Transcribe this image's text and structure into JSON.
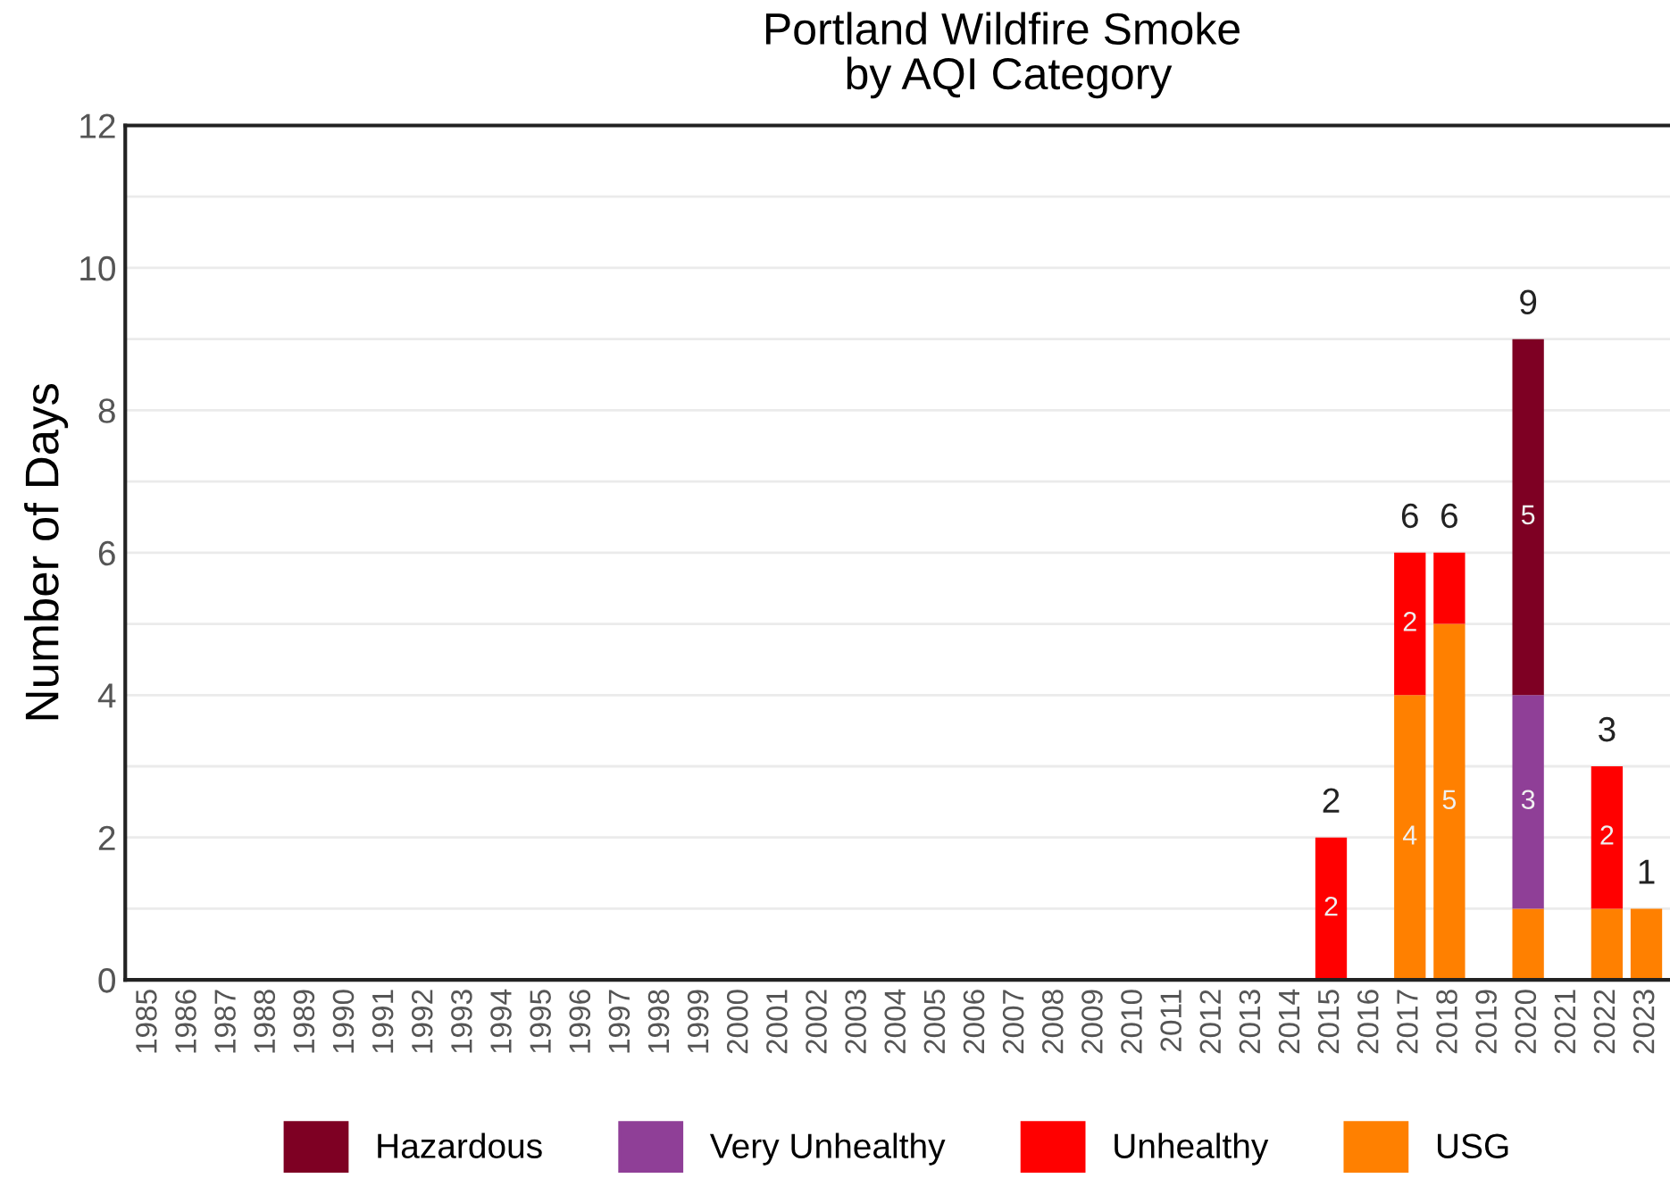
{
  "chart_data": {
    "type": "bar",
    "stacked": true,
    "title": "Portland Wildfire Smoke\n by AQI Category",
    "ylabel": "Number of Days",
    "categories": [
      "1985",
      "1986",
      "1987",
      "1988",
      "1989",
      "1990",
      "1991",
      "1992",
      "1993",
      "1994",
      "1995",
      "1996",
      "1997",
      "1998",
      "1999",
      "2000",
      "2001",
      "2002",
      "2003",
      "2004",
      "2005",
      "2006",
      "2007",
      "2008",
      "2009",
      "2010",
      "2011",
      "2012",
      "2013",
      "2014",
      "2015",
      "2016",
      "2017",
      "2018",
      "2019",
      "2020",
      "2021",
      "2022",
      "2023"
    ],
    "series": [
      {
        "name": "USG",
        "color": "#ff8000",
        "values": [
          0,
          0,
          0,
          0,
          0,
          0,
          0,
          0,
          0,
          0,
          0,
          0,
          0,
          0,
          0,
          0,
          0,
          0,
          0,
          0,
          0,
          0,
          0,
          0,
          0,
          0,
          0,
          0,
          0,
          0,
          0,
          0,
          4,
          5,
          0,
          1,
          0,
          1,
          1
        ],
        "value_labels": [
          null,
          null,
          null,
          null,
          null,
          null,
          null,
          null,
          null,
          null,
          null,
          null,
          null,
          null,
          null,
          null,
          null,
          null,
          null,
          null,
          null,
          null,
          null,
          null,
          null,
          null,
          null,
          null,
          null,
          null,
          null,
          null,
          "4",
          "5",
          null,
          null,
          null,
          null,
          null
        ]
      },
      {
        "name": "Unhealthy",
        "color": "#ff0000",
        "values": [
          0,
          0,
          0,
          0,
          0,
          0,
          0,
          0,
          0,
          0,
          0,
          0,
          0,
          0,
          0,
          0,
          0,
          0,
          0,
          0,
          0,
          0,
          0,
          0,
          0,
          0,
          0,
          0,
          0,
          0,
          2,
          0,
          2,
          1,
          0,
          0,
          0,
          2,
          0
        ],
        "value_labels": [
          null,
          null,
          null,
          null,
          null,
          null,
          null,
          null,
          null,
          null,
          null,
          null,
          null,
          null,
          null,
          null,
          null,
          null,
          null,
          null,
          null,
          null,
          null,
          null,
          null,
          null,
          null,
          null,
          null,
          null,
          "2",
          null,
          "2",
          null,
          null,
          null,
          null,
          "2",
          null
        ]
      },
      {
        "name": "Very Unhealthy",
        "color": "#8f3f97",
        "values": [
          0,
          0,
          0,
          0,
          0,
          0,
          0,
          0,
          0,
          0,
          0,
          0,
          0,
          0,
          0,
          0,
          0,
          0,
          0,
          0,
          0,
          0,
          0,
          0,
          0,
          0,
          0,
          0,
          0,
          0,
          0,
          0,
          0,
          0,
          0,
          3,
          0,
          0,
          0
        ],
        "value_labels": [
          null,
          null,
          null,
          null,
          null,
          null,
          null,
          null,
          null,
          null,
          null,
          null,
          null,
          null,
          null,
          null,
          null,
          null,
          null,
          null,
          null,
          null,
          null,
          null,
          null,
          null,
          null,
          null,
          null,
          null,
          null,
          null,
          null,
          null,
          null,
          "3",
          null,
          null,
          null
        ]
      },
      {
        "name": "Hazardous",
        "color": "#7e0023",
        "values": [
          0,
          0,
          0,
          0,
          0,
          0,
          0,
          0,
          0,
          0,
          0,
          0,
          0,
          0,
          0,
          0,
          0,
          0,
          0,
          0,
          0,
          0,
          0,
          0,
          0,
          0,
          0,
          0,
          0,
          0,
          0,
          0,
          0,
          0,
          0,
          5,
          0,
          0,
          0
        ],
        "value_labels": [
          null,
          null,
          null,
          null,
          null,
          null,
          null,
          null,
          null,
          null,
          null,
          null,
          null,
          null,
          null,
          null,
          null,
          null,
          null,
          null,
          null,
          null,
          null,
          null,
          null,
          null,
          null,
          null,
          null,
          null,
          null,
          null,
          null,
          null,
          null,
          "5",
          null,
          null,
          null
        ]
      }
    ],
    "totals": [
      null,
      null,
      null,
      null,
      null,
      null,
      null,
      null,
      null,
      null,
      null,
      null,
      null,
      null,
      null,
      null,
      null,
      null,
      null,
      null,
      null,
      null,
      null,
      null,
      null,
      null,
      null,
      null,
      null,
      null,
      "2",
      null,
      "6",
      "6",
      null,
      "9",
      null,
      "3",
      "1"
    ],
    "ylim": [
      0,
      12
    ],
    "yticks": [
      0,
      {
        "value": 1,
        "label": null
      },
      2,
      {
        "value": 3,
        "label": null
      },
      4,
      {
        "value": 5,
        "label": null
      },
      6,
      {
        "value": 7,
        "label": null
      },
      8,
      {
        "value": 9,
        "label": null
      },
      10,
      {
        "value": 11,
        "label": null
      },
      12
    ],
    "grid": "y",
    "legend": "bottom"
  }
}
